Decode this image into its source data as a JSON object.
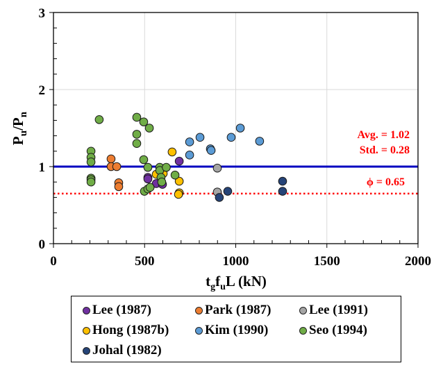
{
  "chart_data": {
    "type": "scatter",
    "title": "",
    "xlabel": "t_g f_u L (kN)",
    "xlabel_parts": {
      "main1": "t",
      "sub1": "g",
      "main2": "f",
      "sub2": "u",
      "main3": "L (kN)"
    },
    "ylabel": "P_u/P_n",
    "ylabel_parts": {
      "main1": "P",
      "sub1": "u",
      "main2": "/P",
      "sub2": "n"
    },
    "xlim": [
      0,
      2000
    ],
    "ylim": [
      0,
      3
    ],
    "x_ticks": [
      0,
      500,
      1000,
      1500,
      2000
    ],
    "x_tick_labels": [
      "0",
      "500",
      "1000",
      "1500",
      "2000"
    ],
    "y_ticks": [
      0,
      1,
      2,
      3
    ],
    "y_tick_labels": [
      "0",
      "1",
      "2",
      "3"
    ],
    "grid": "major vertical and horizontal gridlines",
    "legend_position": "bottom",
    "reference_lines": [
      {
        "name": "average",
        "y": 1.0,
        "color": "#0000c0",
        "style": "solid"
      },
      {
        "name": "phi",
        "y": 0.65,
        "color": "#ff0000",
        "style": "dotted"
      }
    ],
    "annotations": [
      {
        "text": "Avg. = 1.02"
      },
      {
        "text": "Std. = 0.28"
      },
      {
        "text": "ϕ = 0.65"
      }
    ],
    "series": [
      {
        "name": "Lee (1987)",
        "color": "#7030a0",
        "points": [
          [
            518,
            0.86
          ],
          [
            518,
            0.84
          ],
          [
            564,
            0.78
          ],
          [
            598,
            0.77
          ],
          [
            690,
            1.07
          ]
        ]
      },
      {
        "name": "Park (1987)",
        "color": "#ed7d31",
        "points": [
          [
            316,
            1.1
          ],
          [
            316,
            1.0
          ],
          [
            347,
            1.0
          ],
          [
            358,
            0.79
          ],
          [
            358,
            0.74
          ]
        ]
      },
      {
        "name": "Lee (1991)",
        "color": "#a5a5a5",
        "points": [
          [
            899,
            0.98
          ],
          [
            899,
            0.67
          ]
        ]
      },
      {
        "name": "Hong (1987b)",
        "color": "#ffc000",
        "points": [
          [
            564,
            0.9
          ],
          [
            602,
            0.91
          ],
          [
            651,
            1.19
          ],
          [
            690,
            0.81
          ],
          [
            690,
            0.66
          ],
          [
            686,
            0.64
          ]
        ]
      },
      {
        "name": "Kim (1990)",
        "color": "#5b9bd5",
        "points": [
          [
            747,
            1.32
          ],
          [
            747,
            1.15
          ],
          [
            804,
            1.38
          ],
          [
            861,
            1.23
          ],
          [
            865,
            1.21
          ],
          [
            975,
            1.38
          ],
          [
            1025,
            1.5
          ],
          [
            1131,
            1.33
          ]
        ]
      },
      {
        "name": "Seo (1994)",
        "color": "#70ad47",
        "points": [
          [
            251,
            1.61
          ],
          [
            206,
            1.2
          ],
          [
            206,
            1.12
          ],
          [
            206,
            1.06
          ],
          [
            206,
            0.85
          ],
          [
            206,
            0.83
          ],
          [
            206,
            0.8
          ],
          [
            457,
            1.64
          ],
          [
            495,
            1.58
          ],
          [
            526,
            1.5
          ],
          [
            457,
            1.42
          ],
          [
            457,
            1.3
          ],
          [
            495,
            1.09
          ],
          [
            518,
            0.99
          ],
          [
            499,
            0.68
          ],
          [
            518,
            0.71
          ],
          [
            530,
            0.73
          ],
          [
            583,
            0.99
          ],
          [
            583,
            0.95
          ],
          [
            590,
            0.86
          ],
          [
            594,
            0.8
          ],
          [
            619,
            0.99
          ],
          [
            667,
            0.89
          ]
        ]
      },
      {
        "name": "Johal (1982)",
        "color": "#264478",
        "points": [
          [
            910,
            0.6
          ],
          [
            956,
            0.68
          ],
          [
            1257,
            0.81
          ],
          [
            1257,
            0.68
          ]
        ]
      }
    ]
  }
}
